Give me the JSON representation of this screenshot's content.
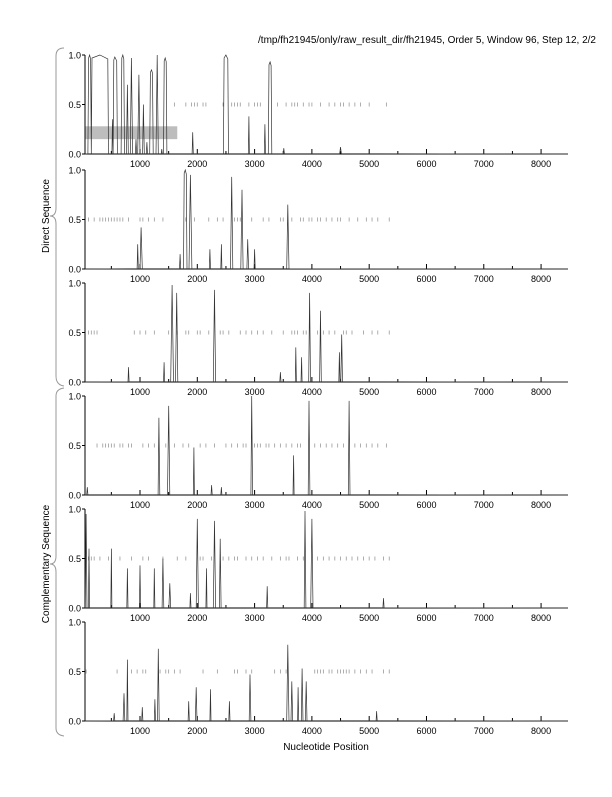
{
  "chart_data": {
    "type": "line",
    "title": "/tmp/fh21945/only/raw_result_dir/fh21945, Order 5, Window 96, Step 12, 2/2",
    "xlabel": "Nucleotide Position",
    "group_labels": [
      "Direct Sequence",
      "Complementary Sequence"
    ],
    "xlim": [
      40,
      8470
    ],
    "ylim": [
      0,
      1
    ],
    "x_ticks": [
      1000,
      2000,
      3000,
      4000,
      5000,
      6000,
      7000,
      8000
    ],
    "y_ticks": [
      "0.0",
      "0.5",
      "1.0"
    ],
    "annotation_bar": {
      "panel": 0,
      "x_range": [
        50,
        1650
      ],
      "y_range": [
        0.15,
        0.28
      ],
      "color": "#bdbdbd"
    },
    "panels": [
      {
        "group": "Direct Sequence",
        "peaks": [
          [
            120,
            1.0,
            60
          ],
          [
            300,
            1.0,
            300
          ],
          [
            520,
            0.35,
            20
          ],
          [
            560,
            0.98,
            90
          ],
          [
            700,
            1.0,
            60
          ],
          [
            780,
            0.7,
            30
          ],
          [
            850,
            0.97,
            40
          ],
          [
            930,
            0.15,
            20
          ],
          [
            980,
            0.8,
            40
          ],
          [
            1060,
            0.5,
            30
          ],
          [
            1120,
            0.12,
            20
          ],
          [
            1200,
            0.85,
            60
          ],
          [
            1300,
            1.0,
            40
          ],
          [
            1380,
            0.05,
            20
          ],
          [
            1440,
            0.97,
            60
          ],
          [
            1920,
            0.22,
            20
          ],
          [
            2500,
            1.0,
            90
          ],
          [
            2900,
            0.38,
            20
          ],
          [
            3180,
            0.3,
            20
          ],
          [
            3270,
            0.93,
            60
          ],
          [
            3510,
            0.06,
            20
          ],
          [
            4500,
            0.07,
            30
          ]
        ],
        "orf_ticks": [
          1600,
          1800,
          1900,
          1950,
          2000,
          2100,
          2150,
          2450,
          2600,
          2650,
          2700,
          2750,
          2900,
          3000,
          3050,
          3100,
          3400,
          3550,
          3650,
          3700,
          3750,
          3850,
          3950,
          4000,
          4150,
          4300,
          4400,
          4500,
          4550,
          4650,
          4750,
          4850,
          5000,
          5300
        ]
      },
      {
        "group": "Direct Sequence",
        "peaks": [
          [
            960,
            0.25,
            20
          ],
          [
            1020,
            0.42,
            40
          ],
          [
            1700,
            0.15,
            20
          ],
          [
            1790,
            1.0,
            60
          ],
          [
            1880,
            0.95,
            50
          ],
          [
            2220,
            0.2,
            20
          ],
          [
            2420,
            0.25,
            20
          ],
          [
            2600,
            0.93,
            40
          ],
          [
            2780,
            0.8,
            40
          ],
          [
            2880,
            0.3,
            30
          ],
          [
            3000,
            0.2,
            20
          ],
          [
            3580,
            0.65,
            40
          ]
        ],
        "orf_ticks": [
          100,
          200,
          300,
          350,
          400,
          450,
          500,
          550,
          600,
          650,
          700,
          800,
          1000,
          1050,
          1150,
          1250,
          1400,
          1800,
          1950,
          2200,
          2350,
          2450,
          2650,
          2700,
          2750,
          2950,
          3150,
          3250,
          3450,
          3500,
          3650,
          3800,
          3850,
          3950,
          4000,
          4100,
          4150,
          4250,
          4350,
          4450,
          4500,
          4650,
          4800,
          4950,
          5050,
          5150,
          5350
        ]
      },
      {
        "group": "Direct Sequence",
        "peaks": [
          [
            800,
            0.15,
            20
          ],
          [
            1420,
            0.2,
            20
          ],
          [
            1560,
            0.98,
            50
          ],
          [
            1640,
            0.9,
            40
          ],
          [
            2300,
            0.93,
            40
          ],
          [
            3450,
            0.1,
            20
          ],
          [
            3720,
            0.35,
            20
          ],
          [
            3820,
            0.25,
            20
          ],
          [
            3960,
            0.9,
            30
          ],
          [
            4150,
            0.72,
            30
          ],
          [
            4480,
            0.3,
            20
          ],
          [
            4520,
            0.48,
            30
          ]
        ],
        "orf_ticks": [
          100,
          150,
          200,
          250,
          900,
          1000,
          1100,
          1250,
          1500,
          1650,
          1800,
          1850,
          2000,
          2050,
          2200,
          2400,
          2450,
          2550,
          2750,
          2850,
          2950,
          3050,
          3150,
          3300,
          3500,
          3650,
          3700,
          3750,
          3850,
          3900,
          4100,
          4200,
          4300,
          4400,
          4550,
          4600,
          4700,
          4900,
          5050,
          5150,
          5350
        ]
      },
      {
        "group": "Complementary Sequence",
        "peaks": [
          [
            80,
            0.08,
            20
          ],
          [
            1330,
            0.78,
            30
          ],
          [
            1500,
            0.9,
            40
          ],
          [
            1940,
            0.48,
            20
          ],
          [
            2250,
            0.1,
            20
          ],
          [
            2420,
            0.08,
            20
          ],
          [
            2950,
            1.0,
            30
          ],
          [
            3680,
            0.4,
            20
          ],
          [
            3950,
            0.95,
            30
          ],
          [
            4650,
            0.95,
            30
          ]
        ],
        "orf_ticks": [
          250,
          350,
          400,
          450,
          500,
          550,
          650,
          700,
          800,
          850,
          1050,
          1150,
          1250,
          1450,
          1600,
          1750,
          1850,
          2050,
          2150,
          2300,
          2500,
          2600,
          2700,
          2800,
          2850,
          3000,
          3050,
          3100,
          3200,
          3250,
          3350,
          3450,
          3550,
          3650,
          3750,
          3800,
          4050,
          4150,
          4250,
          4350,
          4450,
          4550,
          4750,
          4850,
          4950,
          5050,
          5150,
          5300
        ]
      },
      {
        "group": "Complementary Sequence",
        "peaks": [
          [
            60,
            0.95,
            30
          ],
          [
            110,
            0.6,
            20
          ],
          [
            500,
            0.6,
            20
          ],
          [
            780,
            0.4,
            20
          ],
          [
            1000,
            0.43,
            20
          ],
          [
            1250,
            0.4,
            20
          ],
          [
            1400,
            0.5,
            30
          ],
          [
            1520,
            0.25,
            30
          ],
          [
            1880,
            0.15,
            20
          ],
          [
            2000,
            0.9,
            40
          ],
          [
            2160,
            0.4,
            20
          ],
          [
            2300,
            0.88,
            40
          ],
          [
            2400,
            0.7,
            30
          ],
          [
            3220,
            0.22,
            20
          ],
          [
            3880,
            0.98,
            30
          ],
          [
            4000,
            0.9,
            40
          ],
          [
            5250,
            0.1,
            20
          ]
        ],
        "orf_ticks": [
          100,
          150,
          200,
          300,
          450,
          650,
          850,
          1050,
          1150,
          1400,
          1650,
          1800,
          2050,
          2100,
          2250,
          2450,
          2550,
          2650,
          2700,
          2850,
          2950,
          3050,
          3150,
          3300,
          3450,
          3550,
          3600,
          3750,
          3850,
          4100,
          4200,
          4300,
          4400,
          4500,
          4600,
          4700,
          4800,
          4900,
          5000,
          5100,
          5250,
          5350
        ]
      },
      {
        "group": "Complementary Sequence",
        "peaks": [
          [
            550,
            0.08,
            20
          ],
          [
            720,
            0.28,
            30
          ],
          [
            780,
            0.62,
            20
          ],
          [
            1040,
            0.14,
            20
          ],
          [
            1260,
            0.22,
            20
          ],
          [
            1320,
            0.73,
            30
          ],
          [
            1850,
            0.2,
            20
          ],
          [
            1980,
            0.34,
            30
          ],
          [
            2230,
            0.32,
            20
          ],
          [
            2560,
            0.2,
            20
          ],
          [
            2920,
            0.47,
            30
          ],
          [
            3580,
            0.77,
            40
          ],
          [
            3650,
            0.4,
            30
          ],
          [
            3760,
            0.34,
            20
          ],
          [
            3830,
            0.53,
            30
          ],
          [
            3900,
            0.4,
            30
          ],
          [
            5130,
            0.1,
            20
          ]
        ],
        "orf_ticks": [
          60,
          600,
          850,
          950,
          1050,
          1100,
          1350,
          1450,
          1500,
          1600,
          1700,
          2100,
          2350,
          2650,
          2700,
          2850,
          2950,
          3350,
          3450,
          3550,
          4050,
          4100,
          4150,
          4200,
          4300,
          4350,
          4450,
          4500,
          4550,
          4600,
          4650,
          4750,
          4850,
          4950,
          5050,
          5250,
          5350
        ]
      }
    ]
  }
}
